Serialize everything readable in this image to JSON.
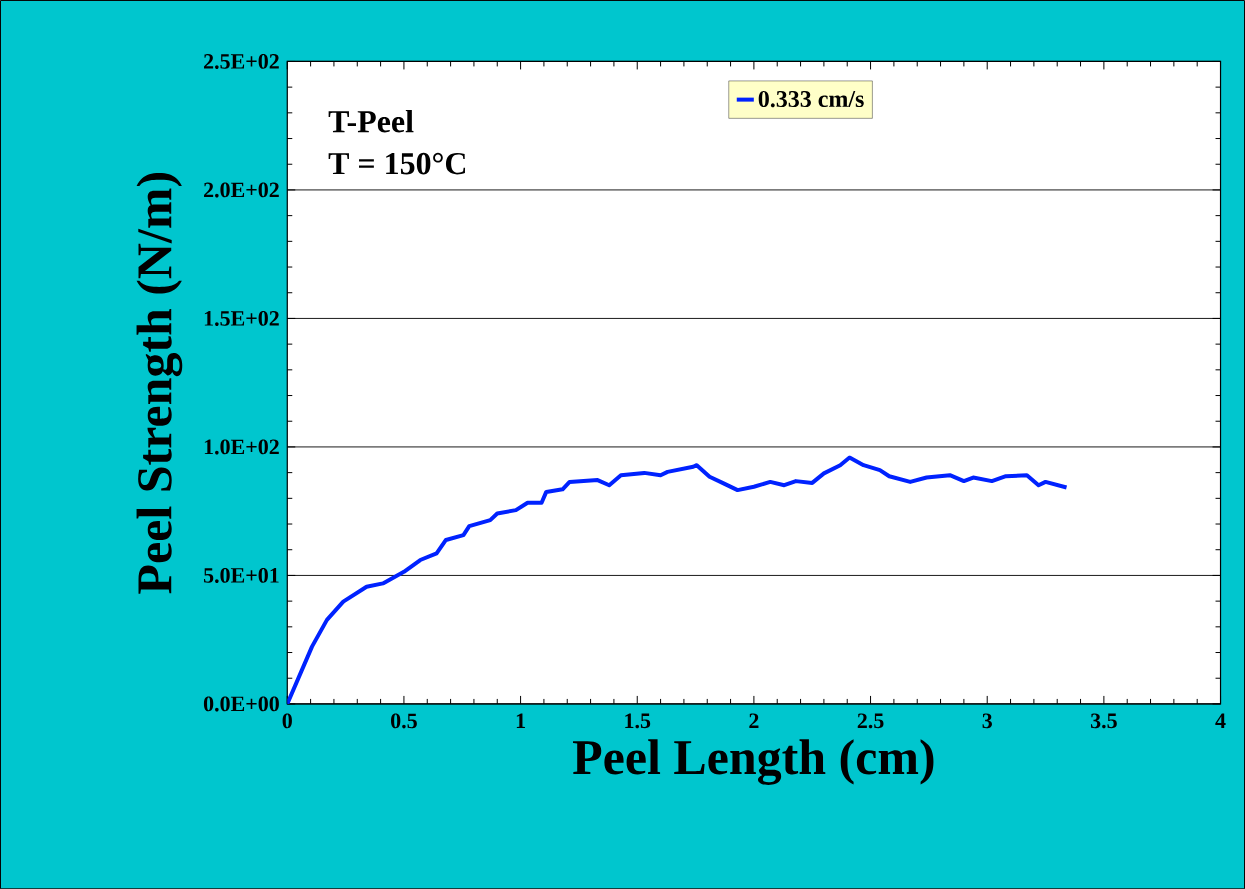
{
  "chart_data": {
    "type": "line",
    "xlabel": "Peel Length (cm)",
    "ylabel": "Peel Strength (N/m)",
    "annotations": [
      "T-Peel",
      "T = 150°C"
    ],
    "x": [
      0,
      0.106,
      0.17,
      0.24,
      0.34,
      0.41,
      0.5,
      0.57,
      0.64,
      0.68,
      0.755,
      0.78,
      0.87,
      0.9,
      0.98,
      1.03,
      1.09,
      1.11,
      1.18,
      1.21,
      1.33,
      1.38,
      1.43,
      1.53,
      1.6,
      1.63,
      1.74,
      1.755,
      1.81,
      1.87,
      1.93,
      2.0,
      2.07,
      2.13,
      2.18,
      2.25,
      2.3,
      2.37,
      2.41,
      2.47,
      2.54,
      2.58,
      2.67,
      2.74,
      2.84,
      2.9,
      2.94,
      3.02,
      3.08,
      3.17,
      3.22,
      3.25,
      3.34
    ],
    "series": [
      {
        "name": "0.333 cm/s",
        "color": "#0022ff",
        "values": [
          0,
          22.3,
          32.7,
          39.8,
          45.6,
          46.9,
          51.4,
          56,
          58.6,
          63.8,
          65.7,
          69.2,
          71.5,
          74.1,
          75.4,
          78.3,
          78.3,
          82.5,
          83.5,
          86.4,
          87.1,
          85.1,
          89,
          89.9,
          89,
          90.3,
          92.3,
          92.9,
          88.4,
          85.8,
          83.2,
          84.5,
          86.4,
          85.1,
          86.7,
          86,
          89.7,
          92.9,
          95.9,
          92.9,
          91,
          88.6,
          86.4,
          88.1,
          89,
          86.7,
          88.1,
          86.7,
          88.6,
          89,
          85.1,
          86.4,
          84.2
        ]
      }
    ],
    "xlim": [
      0,
      4
    ],
    "ylim": [
      0,
      250
    ],
    "xticks": [
      0,
      0.5,
      1,
      1.5,
      2,
      2.5,
      3,
      3.5,
      4
    ],
    "yticks": [
      {
        "value": 0,
        "label": "0.0E+00"
      },
      {
        "value": 50,
        "label": "5.0E+01"
      },
      {
        "value": 100,
        "label": "1.0E+02"
      },
      {
        "value": 150,
        "label": "1.5E+02"
      },
      {
        "value": 200,
        "label": "2.0E+02"
      },
      {
        "value": 250,
        "label": "2.5E+02"
      }
    ],
    "grid": "y",
    "legend": "top"
  }
}
